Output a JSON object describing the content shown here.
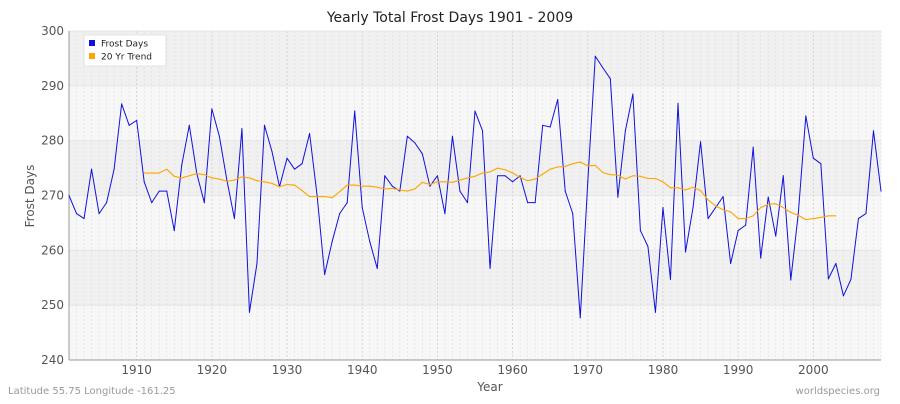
{
  "chart_data": {
    "type": "line",
    "title": "Yearly Total Frost Days 1901 - 2009",
    "xlabel": "Year",
    "ylabel": "Frost Days",
    "xlim": [
      1901,
      2009
    ],
    "ylim": [
      240,
      300
    ],
    "xticks": [
      1910,
      1920,
      1930,
      1940,
      1950,
      1960,
      1970,
      1980,
      1990,
      2000
    ],
    "yticks": [
      240,
      250,
      260,
      270,
      280,
      290,
      300
    ],
    "grid": true,
    "legend_position": "top-left",
    "series": [
      {
        "name": "Frost Days",
        "color": "#1010dd",
        "x_start": 1901,
        "values": [
          270.0,
          266.7,
          265.8,
          274.8,
          266.7,
          268.7,
          274.8,
          286.7,
          282.8,
          283.7,
          272.5,
          268.7,
          270.8,
          270.8,
          263.6,
          275.6,
          282.8,
          274.0,
          268.7,
          285.8,
          280.8,
          272.8,
          265.8,
          282.2,
          248.7,
          257.6,
          282.8,
          278.0,
          271.6,
          276.8,
          274.8,
          275.8,
          281.3,
          270.0,
          255.6,
          261.6,
          266.7,
          268.7,
          285.4,
          267.8,
          261.6,
          256.7,
          273.6,
          271.7,
          270.8,
          280.8,
          279.6,
          277.6,
          271.7,
          273.6,
          266.7,
          280.8,
          270.8,
          268.7,
          285.4,
          281.8,
          256.7,
          273.6,
          273.6,
          272.5,
          273.6,
          268.7,
          268.7,
          282.8,
          282.5,
          287.5,
          270.8,
          266.7,
          247.7,
          272.5,
          295.4,
          293.3,
          291.3,
          269.7,
          281.8,
          288.5,
          263.6,
          260.7,
          248.7,
          267.8,
          254.7,
          286.8,
          259.7,
          267.8,
          279.8,
          265.8,
          267.8,
          269.8,
          257.6,
          263.6,
          264.6,
          278.8,
          258.6,
          269.7,
          262.6,
          273.6,
          254.6,
          266.7,
          284.5,
          276.8,
          275.8,
          254.8,
          257.6,
          251.7,
          254.7,
          265.8,
          266.7,
          281.8,
          270.8
        ]
      },
      {
        "name": "20 Yr Trend",
        "color": "#ffa500",
        "x_start": 1911,
        "values": [
          274.1,
          274.1,
          274.1,
          274.8,
          273.5,
          273.2,
          273.6,
          274.0,
          273.8,
          273.2,
          273.0,
          272.6,
          272.8,
          273.4,
          273.2,
          272.7,
          272.5,
          272.2,
          271.6,
          272.0,
          271.9,
          270.9,
          269.8,
          269.8,
          269.8,
          269.6,
          270.7,
          271.9,
          271.9,
          271.7,
          271.7,
          271.5,
          271.2,
          271.3,
          271.0,
          270.8,
          271.2,
          272.4,
          272.0,
          272.5,
          272.5,
          272.4,
          272.8,
          273.2,
          273.5,
          274.1,
          274.3,
          275.0,
          274.7,
          274.1,
          273.3,
          272.7,
          273.0,
          273.9,
          274.8,
          275.2,
          275.3,
          275.8,
          276.1,
          275.4,
          275.5,
          274.2,
          273.8,
          273.7,
          273.0,
          273.6,
          273.5,
          273.1,
          273.1,
          272.5,
          271.4,
          271.4,
          271.0,
          271.5,
          270.9,
          269.2,
          268.1,
          267.4,
          267.0,
          265.8,
          265.8,
          266.3,
          267.8,
          268.4,
          268.5,
          267.8,
          266.9,
          266.4,
          265.6,
          265.8,
          266.0,
          266.3,
          266.3
        ]
      }
    ]
  },
  "footer": {
    "location": "Latitude 55.75 Longitude -161.25",
    "source": "worldspecies.org"
  }
}
